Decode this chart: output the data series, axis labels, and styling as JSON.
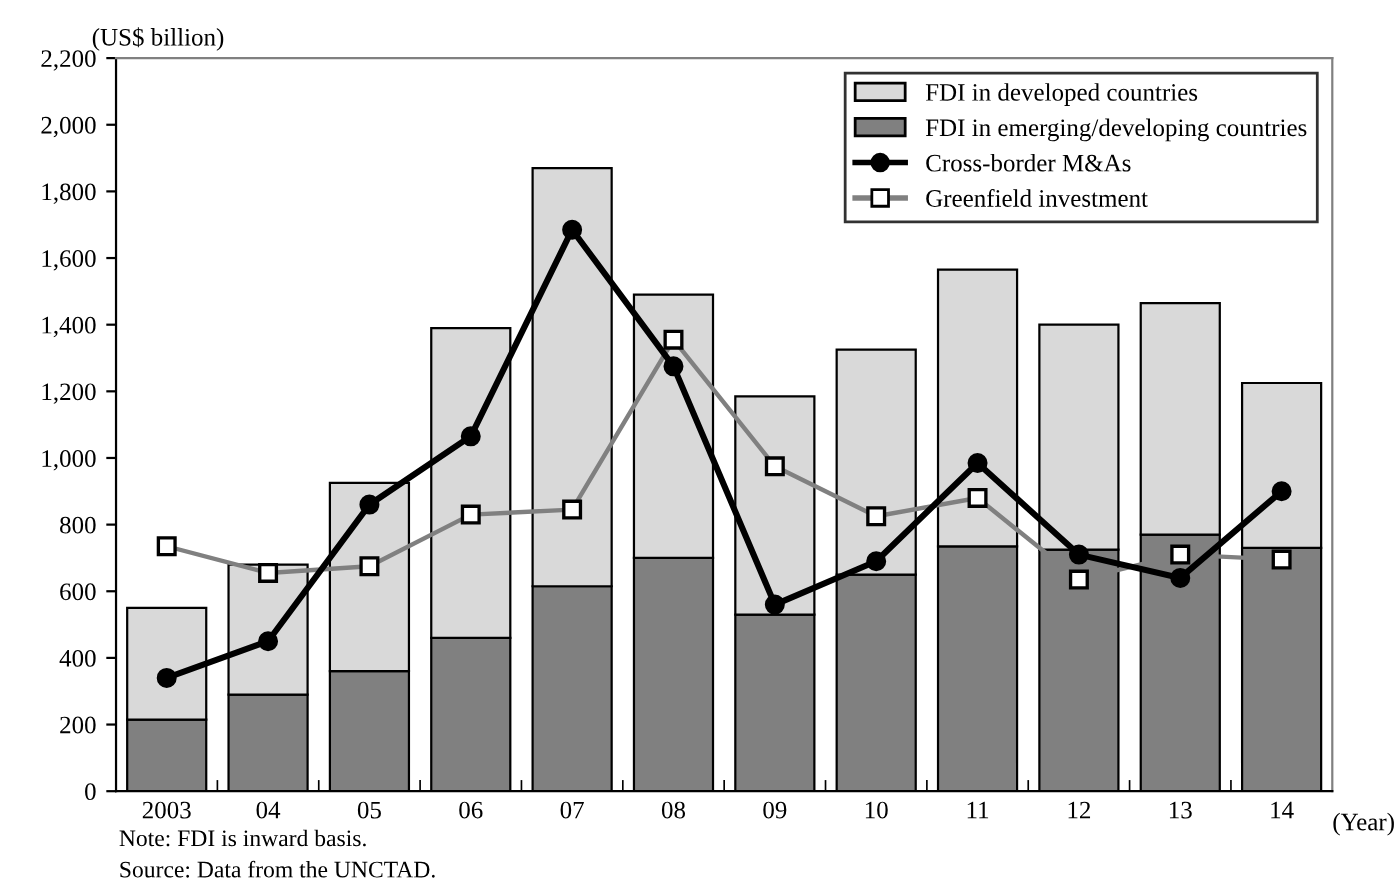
{
  "chart_data": {
    "type": "bar",
    "stacked": true,
    "ylabel": "(US$ billion)",
    "xlabel": "(Year)",
    "categories": [
      "2003",
      "04",
      "05",
      "06",
      "07",
      "08",
      "09",
      "10",
      "11",
      "12",
      "13",
      "14"
    ],
    "series": [
      {
        "name": "FDI in emerging/developing countries",
        "color": "#808080",
        "values": [
          215,
          290,
          360,
          460,
          615,
          700,
          530,
          650,
          735,
          725,
          770,
          730
        ]
      },
      {
        "name": "FDI in developed countries",
        "color": "#d9d9d9",
        "values": [
          335,
          390,
          565,
          930,
          1255,
          790,
          655,
          675,
          830,
          675,
          695,
          495
        ]
      },
      {
        "name": "Cross-border M&As",
        "type": "line",
        "color": "#000000",
        "marker": "circle",
        "values": [
          340,
          450,
          860,
          1065,
          1685,
          1275,
          560,
          690,
          985,
          710,
          640,
          900
        ]
      },
      {
        "name": "Greenfield investment",
        "type": "line",
        "color": "#808080",
        "marker": "square",
        "values": [
          735,
          655,
          675,
          830,
          845,
          1355,
          975,
          825,
          880,
          635,
          710,
          695
        ]
      }
    ],
    "ylim": [
      0,
      2200
    ],
    "yticks": [
      {
        "value": 0,
        "label": "0"
      },
      {
        "value": 200,
        "label": "200"
      },
      {
        "value": 400,
        "label": "400"
      },
      {
        "value": 600,
        "label": "600"
      },
      {
        "value": 800,
        "label": "800"
      },
      {
        "value": 1000,
        "label": "1,000"
      },
      {
        "value": 1200,
        "label": "1,200"
      },
      {
        "value": 1400,
        "label": "1,400"
      },
      {
        "value": 1600,
        "label": "1,600"
      },
      {
        "value": 1800,
        "label": "1,800"
      },
      {
        "value": 2000,
        "label": "2,000"
      },
      {
        "value": 2200,
        "label": "2,200"
      }
    ],
    "grid": false,
    "legend": "top right",
    "annotations": [
      "Note: FDI is inward basis.",
      "Source: Data from the UNCTAD."
    ]
  }
}
